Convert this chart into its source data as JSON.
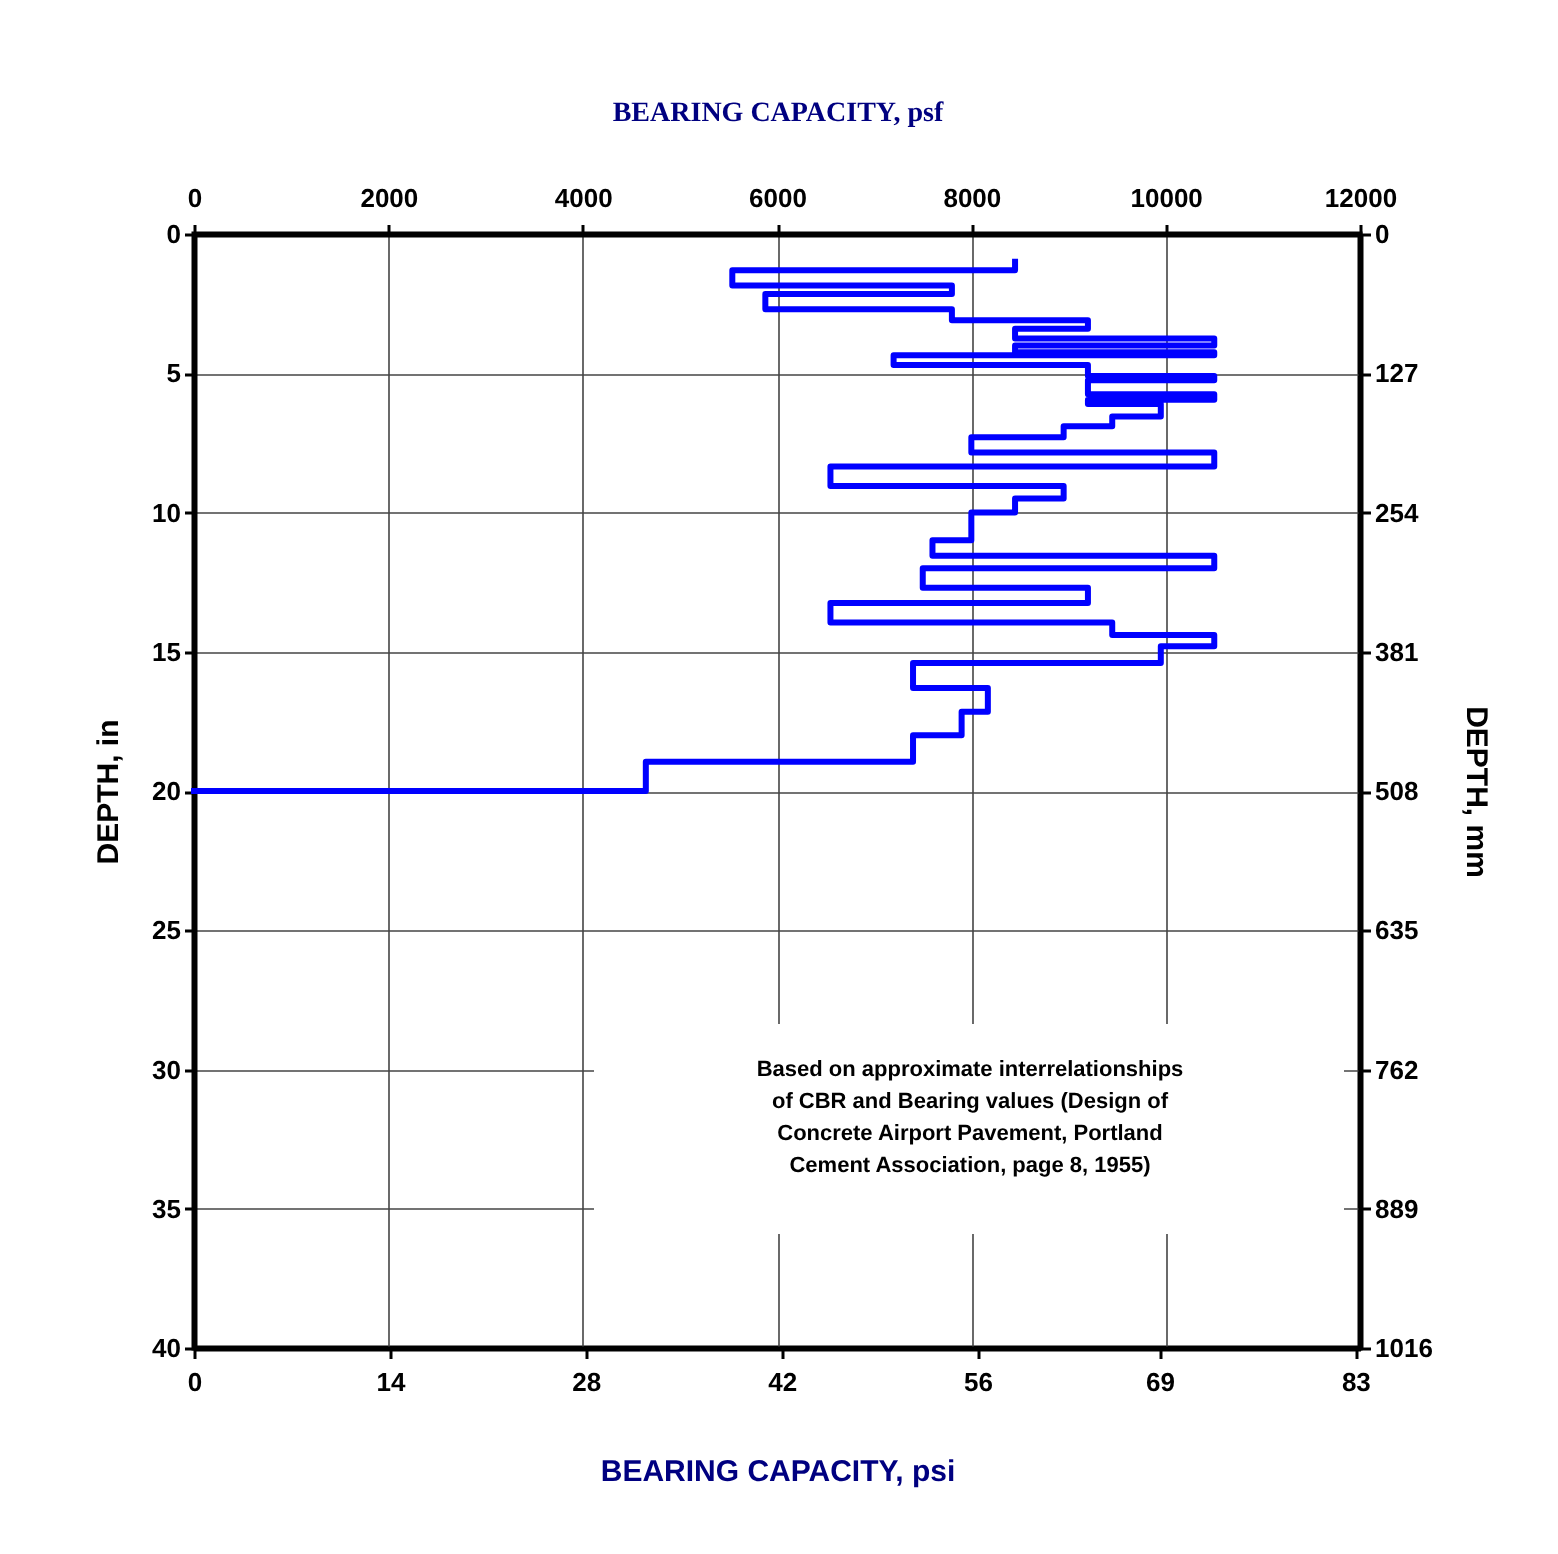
{
  "chart_data": {
    "type": "line",
    "xlabel": "BEARING CAPACITY, psf",
    "x2label": "BEARING CAPACITY, psi",
    "ylabel": "DEPTH, in",
    "y2label": "DEPTH, mm",
    "x": [
      8450,
      8450,
      5540,
      5540,
      7800,
      7800,
      5880,
      5880,
      7800,
      7800,
      9200,
      9200,
      8450,
      8450,
      10500,
      10500,
      8450,
      8450,
      10500,
      10500,
      7200,
      7200,
      9200,
      9200,
      10500,
      10500,
      9200,
      9200,
      10500,
      10500,
      9200,
      9200,
      9950,
      9950,
      9450,
      9450,
      8950,
      8950,
      8000,
      8000,
      10500,
      10500,
      6550,
      6550,
      8950,
      8950,
      8450,
      8450,
      8000,
      8000,
      7600,
      7600,
      10500,
      10500,
      7500,
      7500,
      9200,
      9200,
      6550,
      6550,
      9450,
      9450,
      10500,
      10500,
      9950,
      9950,
      7400,
      7400,
      8170,
      8170,
      7900,
      7900,
      7400,
      7400,
      4650,
      4650,
      0
    ],
    "values": [
      1.0,
      1.3,
      1.3,
      1.85,
      1.85,
      2.15,
      2.15,
      2.7,
      2.7,
      3.1,
      3.1,
      3.4,
      3.4,
      3.75,
      3.75,
      4.0,
      4.0,
      4.25,
      4.25,
      4.35,
      4.35,
      4.7,
      4.7,
      5.1,
      5.1,
      5.25,
      5.25,
      5.75,
      5.75,
      5.95,
      5.95,
      6.1,
      6.1,
      6.55,
      6.55,
      6.9,
      6.9,
      7.3,
      7.3,
      7.85,
      7.85,
      8.35,
      8.35,
      9.05,
      9.05,
      9.5,
      9.5,
      10.0,
      10.0,
      11.0,
      11.0,
      11.55,
      11.55,
      12.0,
      12.0,
      12.7,
      12.7,
      13.25,
      13.25,
      13.95,
      13.95,
      14.4,
      14.4,
      14.8,
      14.8,
      15.4,
      15.4,
      16.3,
      16.3,
      17.15,
      17.15,
      18.0,
      18.0,
      18.95,
      18.95,
      20.0,
      20.0
    ],
    "color": "#0000ff",
    "xlim": [
      0,
      12000
    ],
    "xticks": [
      0,
      2000,
      4000,
      6000,
      8000,
      10000,
      12000
    ],
    "x2lim": [
      0,
      83.33
    ],
    "x2ticks": [
      0,
      14,
      28,
      42,
      56,
      69,
      83
    ],
    "ylim": [
      40,
      0
    ],
    "yticks": [
      0,
      5,
      10,
      15,
      20,
      25,
      30,
      35,
      40
    ],
    "y2lim": [
      1016,
      0
    ],
    "y2ticks": [
      0,
      127,
      254,
      381,
      508,
      635,
      762,
      889,
      1016
    ],
    "grid": true,
    "annotations": [
      "Based on approximate interrelationships\nof CBR and Bearing values (Design of\nConcrete Airport Pavement, Portland\nCement Association, page 8, 1955)"
    ]
  }
}
